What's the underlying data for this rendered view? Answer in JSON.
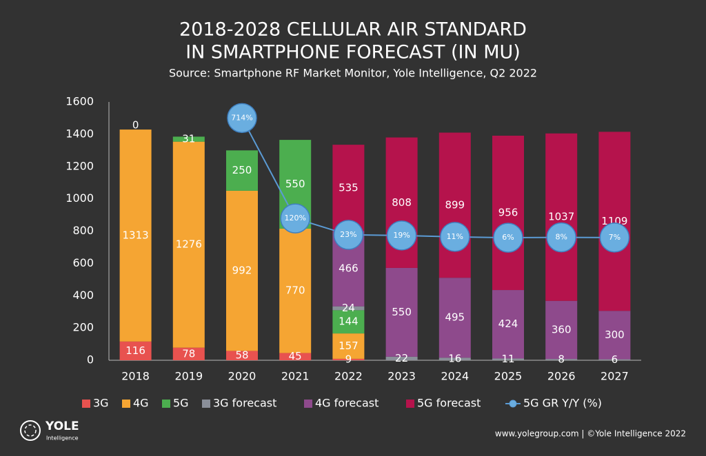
{
  "chart_data": {
    "type": "stacked_bar_line",
    "title": [
      "2018-2028 CELLULAR AIR STANDARD",
      "IN SMARTPHONE FORECAST (IN MU)"
    ],
    "subtitle": "Source: Smartphone RF Market Monitor, Yole Intelligence, Q2 2022",
    "categories": [
      "2018",
      "2019",
      "2020",
      "2021",
      "2022",
      "2023",
      "2024",
      "2025",
      "2026",
      "2027"
    ],
    "series": [
      {
        "name": "3G",
        "color": "#e8524f",
        "values": [
          116,
          78,
          58,
          45,
          9,
          null,
          null,
          null,
          null,
          null
        ]
      },
      {
        "name": "4G",
        "color": "#f5a533",
        "values": [
          1313,
          1276,
          992,
          770,
          157,
          null,
          null,
          null,
          null,
          null
        ]
      },
      {
        "name": "5G",
        "color": "#4cae4f",
        "values": [
          0,
          31,
          250,
          550,
          144,
          null,
          null,
          null,
          null,
          null
        ]
      },
      {
        "name": "3G forecast",
        "color": "#8a8f99",
        "values": [
          null,
          null,
          null,
          null,
          24,
          22,
          16,
          11,
          8,
          6
        ]
      },
      {
        "name": "4G forecast",
        "color": "#8e4a8c",
        "values": [
          null,
          null,
          null,
          null,
          466,
          550,
          495,
          424,
          360,
          300
        ]
      },
      {
        "name": "5G forecast",
        "color": "#b5134c",
        "values": [
          null,
          null,
          null,
          null,
          535,
          808,
          899,
          956,
          1037,
          1109
        ]
      },
      {
        "name": "5G GR Y/Y (%)",
        "color": "#5b9bd5",
        "type": "line",
        "axis": "y2",
        "values": [
          null,
          null,
          714,
          120,
          23,
          19,
          11,
          6,
          8,
          7
        ],
        "value_labels": [
          null,
          null,
          "714%",
          "120%",
          "23%",
          "19%",
          "11%",
          "6%",
          "8%",
          "7%"
        ]
      }
    ],
    "ylim": [
      0,
      1600
    ],
    "yticks": [
      0,
      200,
      400,
      600,
      800,
      1000,
      1200,
      1400,
      1600
    ],
    "y2lim": [
      -719,
      809
    ],
    "legend": "bottom"
  },
  "footer": {
    "logo": "YOLE",
    "logo_sub": "Intelligence",
    "credit": "www.yolegroup.com | ©Yole Intelligence 2022"
  }
}
